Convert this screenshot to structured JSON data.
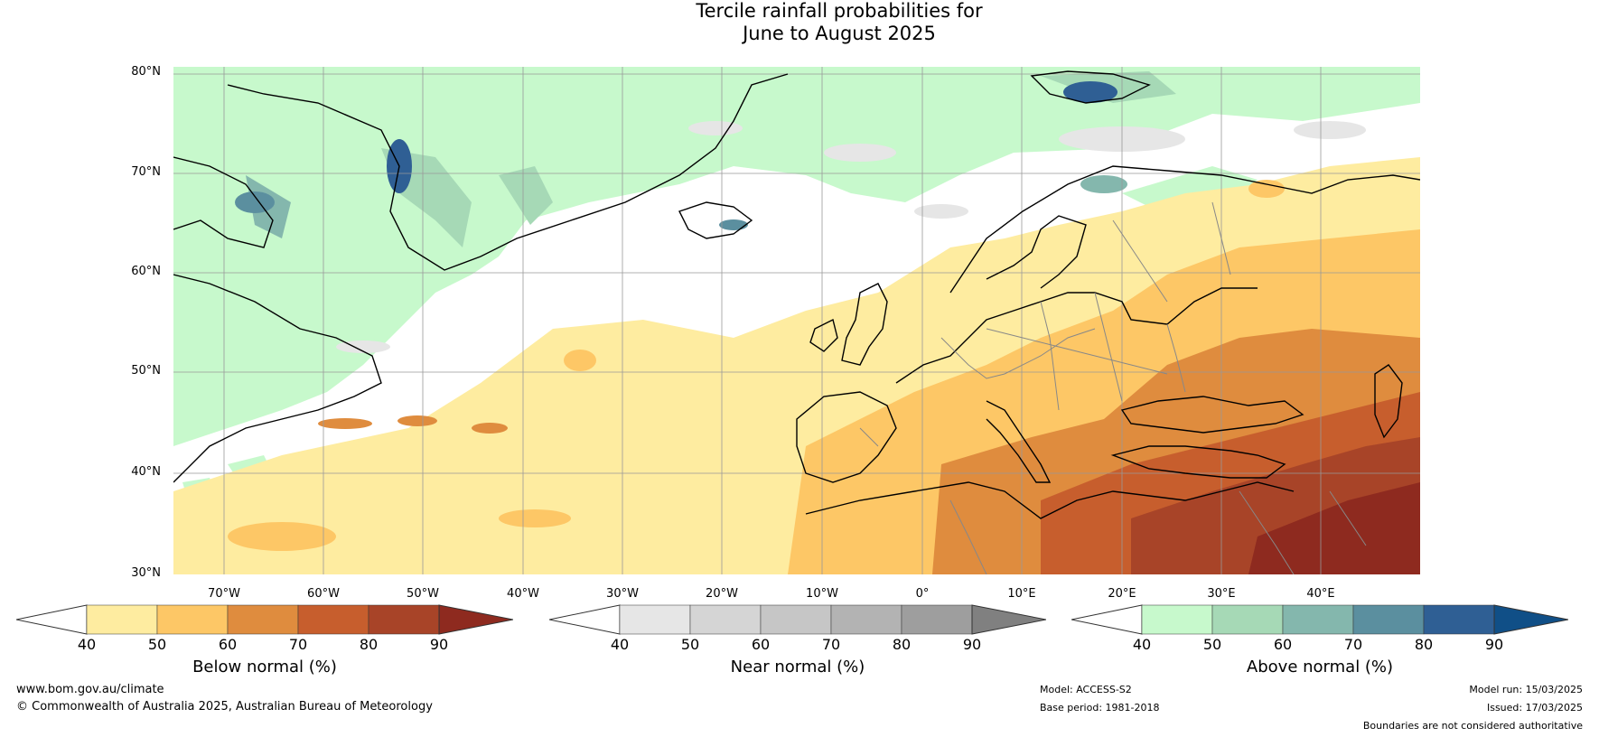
{
  "title_line1": "Tercile rainfall probabilities for",
  "title_line2": "June to August 2025",
  "latitude_labels": [
    "80°N",
    "70°N",
    "60°N",
    "50°N",
    "40°N",
    "30°N"
  ],
  "longitude_labels": [
    "70°W",
    "60°W",
    "50°W",
    "40°W",
    "30°W",
    "20°W",
    "10°W",
    "0°",
    "10°E",
    "20°E",
    "30°E",
    "40°E"
  ],
  "colorbars": [
    {
      "title": "Below normal (%)",
      "ticks": [
        "40",
        "50",
        "60",
        "70",
        "80",
        "90"
      ],
      "colors": [
        "#ffffff",
        "#feeca0",
        "#fdc766",
        "#df8c3e",
        "#c75e2d",
        "#a84428",
        "#8e2a1f"
      ]
    },
    {
      "title": "Near normal (%)",
      "ticks": [
        "40",
        "50",
        "60",
        "70",
        "80",
        "90"
      ],
      "colors": [
        "#ffffff",
        "#e6e6e6",
        "#d5d5d5",
        "#c6c6c6",
        "#b3b3b3",
        "#9e9e9e",
        "#808080"
      ]
    },
    {
      "title": "Above normal (%)",
      "ticks": [
        "40",
        "50",
        "60",
        "70",
        "80",
        "90"
      ],
      "colors": [
        "#ffffff",
        "#c7f9cc",
        "#a6d9b6",
        "#84b7ad",
        "#5b8f9f",
        "#2f5f94",
        "#104f87"
      ]
    }
  ],
  "footer": {
    "website": "www.bom.gov.au/climate",
    "copyright": "© Commonwealth of Australia 2025, Australian Bureau of Meteorology",
    "model": "Model: ACCESS-S2",
    "base_period": "Base period: 1981-2018",
    "model_run": "Model run: 15/03/2025",
    "issued": "Issued: 17/03/2025",
    "disclaimer": "Boundaries are not considered authoritative"
  }
}
